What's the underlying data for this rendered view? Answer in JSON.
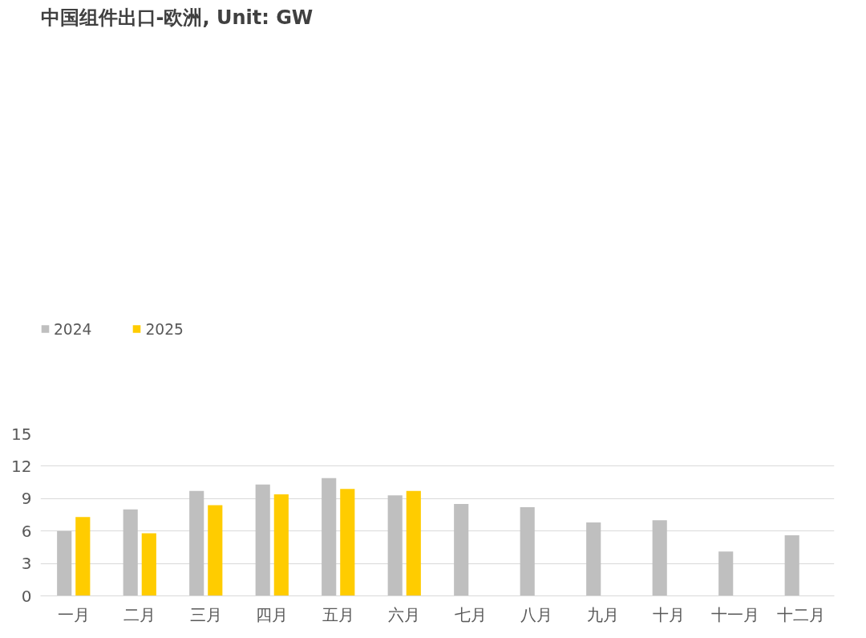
{
  "chart_data": {
    "type": "bar",
    "title": "中国组件出口-欧洲, Unit: GW",
    "categories": [
      "一月",
      "二月",
      "三月",
      "四月",
      "五月",
      "六月",
      "七月",
      "八月",
      "九月",
      "十月",
      "十一月",
      "十二月"
    ],
    "series": [
      {
        "name": "2024",
        "color": "#bfbfbf",
        "values": [
          6.0,
          8.0,
          9.7,
          10.3,
          10.9,
          9.3,
          8.5,
          8.2,
          6.8,
          7.0,
          4.1,
          5.6
        ]
      },
      {
        "name": "2025",
        "color": "#ffcc00",
        "values": [
          7.3,
          5.8,
          8.4,
          9.4,
          9.9,
          9.7,
          null,
          null,
          null,
          null,
          null,
          null
        ]
      }
    ],
    "ylim": [
      0,
      15
    ],
    "yticks": [
      0,
      3,
      6,
      9,
      12,
      15
    ],
    "grid": "y",
    "legend": "top left"
  }
}
